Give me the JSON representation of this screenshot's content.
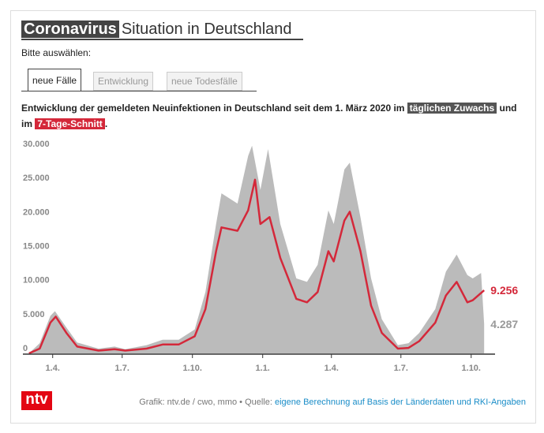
{
  "title": {
    "highlight": "Coronavirus",
    "rest": "Situation in Deutschland"
  },
  "prompt": "Bitte auswählen:",
  "tabs": [
    {
      "label": "neue Fälle",
      "active": true
    },
    {
      "label": "Entwicklung",
      "active": false
    },
    {
      "label": "neue Todesfälle",
      "active": false
    }
  ],
  "description": {
    "text1": "Entwicklung der gemeldeten Neuinfektionen in Deutschland seit dem 1. März 2020 im",
    "hl1": "täglichen Zuwachs",
    "text2": "und im",
    "hl2": "7-Tage-Schnitt",
    "text3": "."
  },
  "footer": {
    "logo": "ntv",
    "credit": "Grafik: ntv.de / cwo, mmo • Quelle:",
    "source_link": "eigene Berechnung auf Basis der Länderdaten und RKI-Angaben"
  },
  "colors": {
    "daily": "#bbbbbb",
    "average": "#d4283a",
    "brand": "#e30613",
    "link": "#1a8dc8"
  },
  "chart_data": {
    "type": "area",
    "ylim": [
      0,
      30000
    ],
    "yticks": [
      {
        "v": 0,
        "label": "0"
      },
      {
        "v": 5000,
        "label": "5.000"
      },
      {
        "v": 10000,
        "label": "10.000"
      },
      {
        "v": 15000,
        "label": "15.000"
      },
      {
        "v": 20000,
        "label": "20.000"
      },
      {
        "v": 25000,
        "label": "25.000"
      },
      {
        "v": 30000,
        "label": "30.000"
      }
    ],
    "xticks": [
      {
        "d": "2020-04-01",
        "label": "1.4."
      },
      {
        "d": "2020-07-01",
        "label": "1.7."
      },
      {
        "d": "2020-10-01",
        "label": "1.10."
      },
      {
        "d": "2021-01-01",
        "label": "1.1."
      },
      {
        "d": "2021-04-01",
        "label": "1.4."
      },
      {
        "d": "2021-07-01",
        "label": "1.7."
      },
      {
        "d": "2021-10-01",
        "label": "1.10."
      }
    ],
    "xlim": [
      "2020-02-22",
      "2021-10-24"
    ],
    "grid": false,
    "series": [
      {
        "name": "täglichen Zuwachs",
        "end_label": "4.287",
        "points": [
          [
            "2020-03-01",
            0
          ],
          [
            "2020-03-15",
            1500
          ],
          [
            "2020-03-29",
            5500
          ],
          [
            "2020-04-04",
            6200
          ],
          [
            "2020-04-19",
            3800
          ],
          [
            "2020-05-03",
            1600
          ],
          [
            "2020-05-31",
            700
          ],
          [
            "2020-06-21",
            1000
          ],
          [
            "2020-07-05",
            600
          ],
          [
            "2020-08-02",
            1200
          ],
          [
            "2020-08-23",
            2000
          ],
          [
            "2020-09-13",
            2000
          ],
          [
            "2020-10-04",
            3500
          ],
          [
            "2020-10-18",
            9000
          ],
          [
            "2020-11-01",
            19000
          ],
          [
            "2020-11-08",
            23500
          ],
          [
            "2020-11-29",
            22000
          ],
          [
            "2020-12-13",
            29000
          ],
          [
            "2020-12-18",
            30500
          ],
          [
            "2020-12-29",
            24000
          ],
          [
            "2021-01-08",
            30000
          ],
          [
            "2021-01-24",
            19000
          ],
          [
            "2021-02-14",
            11000
          ],
          [
            "2021-02-28",
            10500
          ],
          [
            "2021-03-14",
            13000
          ],
          [
            "2021-03-28",
            21000
          ],
          [
            "2021-04-04",
            19000
          ],
          [
            "2021-04-18",
            27000
          ],
          [
            "2021-04-25",
            28000
          ],
          [
            "2021-05-09",
            20000
          ],
          [
            "2021-05-23",
            11000
          ],
          [
            "2021-06-06",
            5000
          ],
          [
            "2021-06-27",
            1200
          ],
          [
            "2021-07-11",
            1500
          ],
          [
            "2021-07-25",
            3000
          ],
          [
            "2021-08-15",
            6500
          ],
          [
            "2021-08-29",
            12000
          ],
          [
            "2021-09-12",
            14500
          ],
          [
            "2021-09-26",
            11500
          ],
          [
            "2021-10-03",
            11000
          ],
          [
            "2021-10-14",
            11800
          ],
          [
            "2021-10-18",
            4287
          ]
        ]
      },
      {
        "name": "7-Tage-Schnitt",
        "end_label": "9.256",
        "points": [
          [
            "2020-03-01",
            0
          ],
          [
            "2020-03-15",
            700
          ],
          [
            "2020-03-29",
            4500
          ],
          [
            "2020-04-05",
            5400
          ],
          [
            "2020-04-19",
            3000
          ],
          [
            "2020-05-03",
            1000
          ],
          [
            "2020-05-31",
            400
          ],
          [
            "2020-06-21",
            600
          ],
          [
            "2020-07-05",
            400
          ],
          [
            "2020-08-02",
            700
          ],
          [
            "2020-08-23",
            1300
          ],
          [
            "2020-09-13",
            1300
          ],
          [
            "2020-10-04",
            2500
          ],
          [
            "2020-10-18",
            6500
          ],
          [
            "2020-11-01",
            15000
          ],
          [
            "2020-11-08",
            18500
          ],
          [
            "2020-11-29",
            18000
          ],
          [
            "2020-12-13",
            21000
          ],
          [
            "2020-12-22",
            25500
          ],
          [
            "2020-12-29",
            19000
          ],
          [
            "2021-01-10",
            20000
          ],
          [
            "2021-01-24",
            14000
          ],
          [
            "2021-02-14",
            8000
          ],
          [
            "2021-02-28",
            7500
          ],
          [
            "2021-03-14",
            9000
          ],
          [
            "2021-03-28",
            15000
          ],
          [
            "2021-04-04",
            13500
          ],
          [
            "2021-04-18",
            19500
          ],
          [
            "2021-04-25",
            20800
          ],
          [
            "2021-05-09",
            15000
          ],
          [
            "2021-05-23",
            7000
          ],
          [
            "2021-06-06",
            3000
          ],
          [
            "2021-06-27",
            700
          ],
          [
            "2021-07-11",
            800
          ],
          [
            "2021-07-25",
            1800
          ],
          [
            "2021-08-15",
            4500
          ],
          [
            "2021-08-29",
            8500
          ],
          [
            "2021-09-12",
            10500
          ],
          [
            "2021-09-26",
            7500
          ],
          [
            "2021-10-03",
            7800
          ],
          [
            "2021-10-18",
            9256
          ]
        ]
      }
    ]
  }
}
